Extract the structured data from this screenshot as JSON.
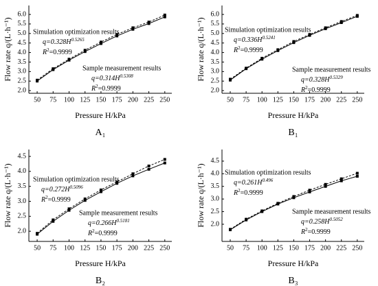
{
  "chart_data": [
    {
      "type": "line",
      "title": "A₁",
      "xlabel": "Pressure H/kPa",
      "ylabel": "Flow rate q/(L·h⁻¹)",
      "x": [
        50,
        75,
        100,
        125,
        150,
        175,
        200,
        225,
        250
      ],
      "xlim": [
        37,
        261
      ],
      "xticks": [
        50,
        75,
        100,
        125,
        150,
        175,
        200,
        225,
        250
      ],
      "ylim": [
        1.86,
        6.47
      ],
      "yticks": [
        {
          "value": 2,
          "label": "2.0"
        },
        2.5,
        {
          "value": 3,
          "label": "3.0"
        },
        3.5,
        {
          "value": 4,
          "label": "4.0"
        },
        4.5,
        {
          "value": 5,
          "label": "5.0"
        },
        5.5,
        {
          "value": 6,
          "label": "6.0"
        }
      ],
      "series": [
        {
          "name": "Simulation optimization results",
          "color": "#000000",
          "dashed": true,
          "marker": "square",
          "values": [
            2.55,
            3.15,
            3.65,
            4.12,
            4.55,
            4.95,
            5.3,
            5.6,
            5.97
          ],
          "equation": {
            "base": "q=0.328H",
            "exponent": "0.5265"
          },
          "r2": {
            "base": "R",
            "exponent": "2",
            "value": "=0.9999"
          }
        },
        {
          "name": "Sample measurement results",
          "color": "#000000",
          "dashed": false,
          "marker": "square",
          "values": [
            2.5,
            3.1,
            3.6,
            4.05,
            4.47,
            4.87,
            5.22,
            5.52,
            5.87
          ],
          "equation": {
            "base": "q=0.314H",
            "exponent": "0.5308"
          },
          "r2": {
            "base": "R",
            "exponent": "2",
            "value": "=0.9999"
          }
        }
      ]
    },
    {
      "type": "line",
      "title": "B₁",
      "xlabel": "Pressure H/kPa",
      "ylabel": "Flow rate q/(L·h⁻¹)",
      "x": [
        50,
        75,
        100,
        125,
        150,
        175,
        200,
        225,
        250
      ],
      "xlim": [
        37,
        261
      ],
      "xticks": [
        50,
        75,
        100,
        125,
        150,
        175,
        200,
        225,
        250
      ],
      "ylim": [
        1.86,
        6.47
      ],
      "yticks": [
        {
          "value": 2,
          "label": "2.0"
        },
        2.5,
        {
          "value": 3,
          "label": "3.0"
        },
        3.5,
        {
          "value": 4,
          "label": "4.0"
        },
        4.5,
        {
          "value": 5,
          "label": "5.0"
        },
        5.5,
        {
          "value": 6,
          "label": "6.0"
        }
      ],
      "series": [
        {
          "name": "Simulation optimization results",
          "color": "#000000",
          "dashed": true,
          "marker": "square",
          "values": [
            2.6,
            3.18,
            3.7,
            4.15,
            4.58,
            4.95,
            5.3,
            5.63,
            5.95
          ],
          "equation": {
            "base": "q=0.336H",
            "exponent": "0.5241"
          },
          "r2": {
            "base": "R",
            "exponent": "2",
            "value": "=0.9999"
          }
        },
        {
          "name": "Sample measurement results",
          "color": "#000000",
          "dashed": false,
          "marker": "square",
          "values": [
            2.55,
            3.15,
            3.65,
            4.1,
            4.52,
            4.9,
            5.25,
            5.57,
            5.9
          ],
          "equation": {
            "base": "q=0.328H",
            "exponent": "0.5329"
          },
          "r2": {
            "base": "R",
            "exponent": "2",
            "value": "=0.9999"
          }
        }
      ]
    },
    {
      "type": "line",
      "title": "B₂",
      "xlabel": "Pressure H/kPa",
      "ylabel": "Flow rate q/(L·h⁻¹)",
      "x": [
        50,
        75,
        100,
        125,
        150,
        175,
        200,
        225,
        250
      ],
      "xlim": [
        37,
        261
      ],
      "xticks": [
        50,
        75,
        100,
        125,
        150,
        175,
        200,
        225,
        250
      ],
      "ylim": [
        1.66,
        4.73
      ],
      "yticks": [
        {
          "value": 2,
          "label": "2.0"
        },
        2.5,
        {
          "value": 3,
          "label": "3.0"
        },
        3.5,
        {
          "value": 4,
          "label": "4.0"
        },
        4.5
      ],
      "series": [
        {
          "name": "Simulation optimization results",
          "color": "#000000",
          "dashed": true,
          "marker": "square",
          "values": [
            1.93,
            2.38,
            2.75,
            3.08,
            3.38,
            3.65,
            3.92,
            4.18,
            4.4
          ],
          "equation": {
            "base": "q=0.272H",
            "exponent": "0.5096"
          },
          "r2": {
            "base": "R",
            "exponent": "2",
            "value": "=0.9999"
          }
        },
        {
          "name": "Sample measurement results",
          "color": "#000000",
          "dashed": false,
          "marker": "square",
          "values": [
            1.9,
            2.33,
            2.7,
            3.03,
            3.32,
            3.6,
            3.85,
            4.07,
            4.28
          ],
          "equation": {
            "base": "q=0.266H",
            "exponent": "0.5181"
          },
          "r2": {
            "base": "R",
            "exponent": "2",
            "value": "=0.9999"
          }
        }
      ]
    },
    {
      "type": "line",
      "title": "B₃",
      "xlabel": "Pressure H/kPa",
      "ylabel": "Flow rate q/(L·h⁻¹)",
      "x": [
        50,
        75,
        100,
        125,
        150,
        175,
        200,
        225,
        250
      ],
      "xlim": [
        37,
        261
      ],
      "xticks": [
        50,
        75,
        100,
        125,
        150,
        175,
        200,
        225,
        250
      ],
      "ylim": [
        1.32,
        4.96
      ],
      "yticks": [
        {
          "value": 2,
          "label": "2.0"
        },
        2.5,
        {
          "value": 3,
          "label": "3.0"
        },
        3.5,
        {
          "value": 4,
          "label": "4.0"
        },
        4.5
      ],
      "series": [
        {
          "name": "Simulation optimization results",
          "color": "#000000",
          "dashed": true,
          "marker": "square",
          "values": [
            1.8,
            2.2,
            2.53,
            2.83,
            3.1,
            3.35,
            3.58,
            3.8,
            4.02
          ],
          "equation": {
            "base": "q=0.261H",
            "exponent": "0.496"
          },
          "r2": {
            "base": "R",
            "exponent": "2",
            "value": "=0.9999"
          }
        },
        {
          "name": "Sample measurement results",
          "color": "#000000",
          "dashed": false,
          "marker": "square",
          "values": [
            1.78,
            2.17,
            2.5,
            2.8,
            3.05,
            3.28,
            3.5,
            3.72,
            3.9
          ],
          "equation": {
            "base": "q=0.258H",
            "exponent": "0.5052"
          },
          "r2": {
            "base": "R",
            "exponent": "2",
            "value": "=0.9999"
          }
        }
      ]
    }
  ]
}
